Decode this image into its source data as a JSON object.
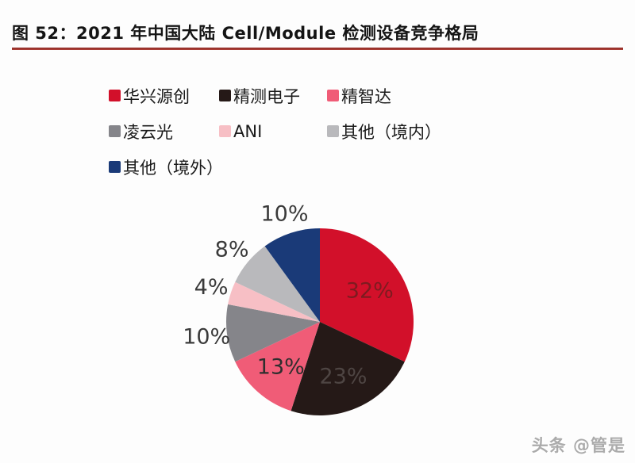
{
  "title": {
    "text": "图 52：2021 年中国大陆 Cell/Module 检测设备竞争格局"
  },
  "watermark": {
    "text": "头条 @管是"
  },
  "accent_colors": {
    "title_underline": "#a0332b",
    "background": "#fdfdfd"
  },
  "chart_data": {
    "type": "pie",
    "title": "2021 年中国大陆 Cell/Module 检测设备竞争格局",
    "legend_position": "top",
    "direction": "clockwise",
    "start_angle_deg": 0,
    "inside_label_radius_frac": 0.63,
    "outside_label_radius_frac": 1.22,
    "label_font_size": 27,
    "slices": [
      {
        "label": "华兴源创",
        "value": 32,
        "color": "#d2102a",
        "label_text": "32%",
        "label_pos": "inside",
        "label_color": "#7e1b20"
      },
      {
        "label": "精测电子",
        "value": 23,
        "color": "#251917",
        "label_text": "23%",
        "label_pos": "inside",
        "label_color": "#4e4543"
      },
      {
        "label": "精智达",
        "value": 13,
        "color": "#f05c77",
        "label_text": "13%",
        "label_pos": "inside",
        "label_color": "#2e2e2e"
      },
      {
        "label": "凌云光",
        "value": 10,
        "color": "#85858a",
        "label_text": "10%",
        "label_pos": "outside",
        "label_color": "#3a3a3a"
      },
      {
        "label": "ANI",
        "value": 4,
        "color": "#f7bfc5",
        "label_text": "4%",
        "label_pos": "outside",
        "label_color": "#3a3a3a"
      },
      {
        "label": "其他（境内）",
        "value": 8,
        "color": "#b9b9bc",
        "label_text": "8%",
        "label_pos": "outside",
        "label_color": "#3a3a3a"
      },
      {
        "label": "其他（境外）",
        "value": 10,
        "color": "#1a3a78",
        "label_text": "10%",
        "label_pos": "outside",
        "label_color": "#3a3a3a"
      }
    ]
  }
}
